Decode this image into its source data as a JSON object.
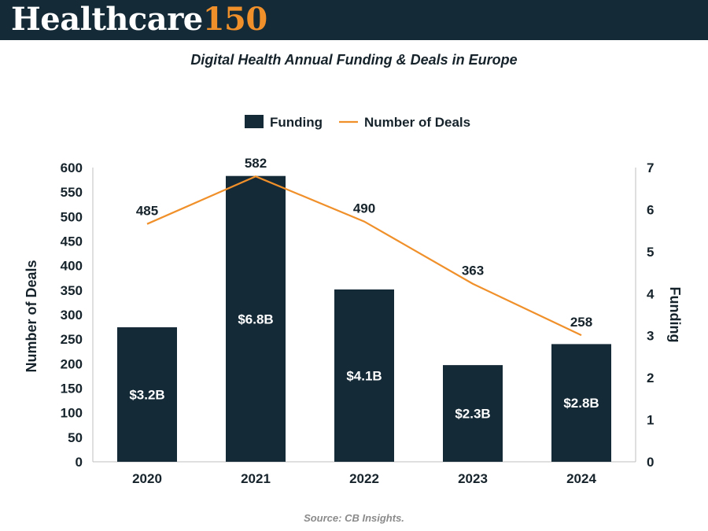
{
  "brand": {
    "word": "Healthcare",
    "number": "150"
  },
  "source": "Source: CB Insights.",
  "colors": {
    "bar": "#152a37",
    "line": "#f0902a",
    "header": "#152a37",
    "text": "#16232b"
  },
  "chart_data": {
    "type": "bar",
    "title": "Digital Health Annual Funding & Deals in Europe",
    "categories": [
      "2020",
      "2021",
      "2022",
      "2023",
      "2024"
    ],
    "series": [
      {
        "name": "Funding",
        "type": "bar",
        "axis": "right",
        "values": [
          3.2,
          6.8,
          4.1,
          2.3,
          2.8
        ],
        "labels": [
          "$3.2B",
          "$6.8B",
          "$4.1B",
          "$2.3B",
          "$2.8B"
        ]
      },
      {
        "name": "Number of Deals",
        "type": "line",
        "axis": "left",
        "values": [
          485,
          582,
          490,
          363,
          258
        ],
        "labels": [
          "485",
          "582",
          "490",
          "363",
          "258"
        ]
      }
    ],
    "ylabel": "Number of Deals",
    "ylim": [
      0,
      600
    ],
    "yticks": [
      "0",
      "50",
      "100",
      "150",
      "200",
      "250",
      "300",
      "350",
      "400",
      "450",
      "500",
      "550",
      "600"
    ],
    "y2label": "Funding",
    "y2lim": [
      0,
      7
    ],
    "y2ticks": [
      "0",
      "1",
      "2",
      "3",
      "4",
      "5",
      "6",
      "7"
    ],
    "legend_position": "top-center",
    "grid": false
  }
}
